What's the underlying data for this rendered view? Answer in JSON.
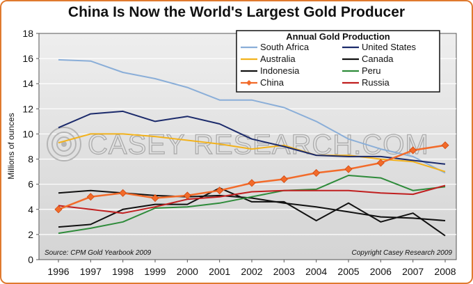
{
  "chart_data": {
    "type": "line",
    "title": "China Is Now the World's Largest Gold Producer",
    "ylabel": "Millions of ounces",
    "xlabel": "",
    "ylim": [
      0,
      18
    ],
    "yticks": [
      "0",
      "2",
      "4",
      "6",
      "8",
      "10",
      "12",
      "14",
      "16",
      "18"
    ],
    "x": [
      "1996",
      "1997",
      "1998",
      "1999",
      "2000",
      "2001",
      "2002",
      "2003",
      "2004",
      "2005",
      "2006",
      "2007",
      "2008"
    ],
    "grid": true,
    "legend_title": "Annual Gold Production",
    "legend_position": "top-right",
    "series": [
      {
        "name": "South Africa",
        "color": "#8aaed8",
        "values": [
          15.9,
          15.8,
          14.9,
          14.4,
          13.7,
          12.7,
          12.7,
          12.1,
          11.0,
          9.6,
          8.8,
          8.2,
          6.9
        ]
      },
      {
        "name": "United States",
        "color": "#1b2a6b",
        "values": [
          10.5,
          11.6,
          11.8,
          11.0,
          11.4,
          10.8,
          9.6,
          9.0,
          8.3,
          8.2,
          8.2,
          7.9,
          7.6
        ]
      },
      {
        "name": "Australia",
        "color": "#f2b21d",
        "values": [
          9.3,
          10.0,
          10.0,
          9.8,
          9.5,
          9.2,
          8.8,
          9.1,
          8.3,
          8.3,
          8.0,
          7.8,
          7.0
        ]
      },
      {
        "name": "Canada",
        "color": "#111111",
        "values": [
          5.3,
          5.5,
          5.3,
          5.1,
          5.0,
          5.1,
          4.9,
          4.5,
          4.2,
          3.8,
          3.4,
          3.3,
          3.1
        ]
      },
      {
        "name": "Indonesia",
        "color": "#111111",
        "values": [
          2.6,
          2.8,
          4.0,
          4.4,
          4.4,
          5.7,
          4.6,
          4.6,
          3.1,
          4.5,
          3.0,
          3.7,
          1.9
        ]
      },
      {
        "name": "Peru",
        "color": "#2e8b3a",
        "values": [
          2.1,
          2.5,
          3.0,
          4.1,
          4.2,
          4.5,
          5.0,
          5.5,
          5.6,
          6.7,
          6.5,
          5.5,
          5.8
        ]
      },
      {
        "name": "China",
        "color": "#f26b2a",
        "marker": "diamond",
        "values": [
          4.0,
          5.0,
          5.3,
          4.9,
          5.1,
          5.5,
          6.1,
          6.4,
          6.9,
          7.2,
          7.7,
          8.7,
          9.1
        ]
      },
      {
        "name": "Russia",
        "color": "#c01f1f",
        "values": [
          4.3,
          4.0,
          3.7,
          4.2,
          4.8,
          5.0,
          5.4,
          5.5,
          5.5,
          5.5,
          5.3,
          5.2,
          5.9
        ]
      }
    ],
    "annotations": {
      "source": "Source: CPM Gold Yearbook 2009",
      "copyright": "Copyright Casey Research 2009",
      "watermark": "CASEY RESEARCH.COM"
    }
  }
}
